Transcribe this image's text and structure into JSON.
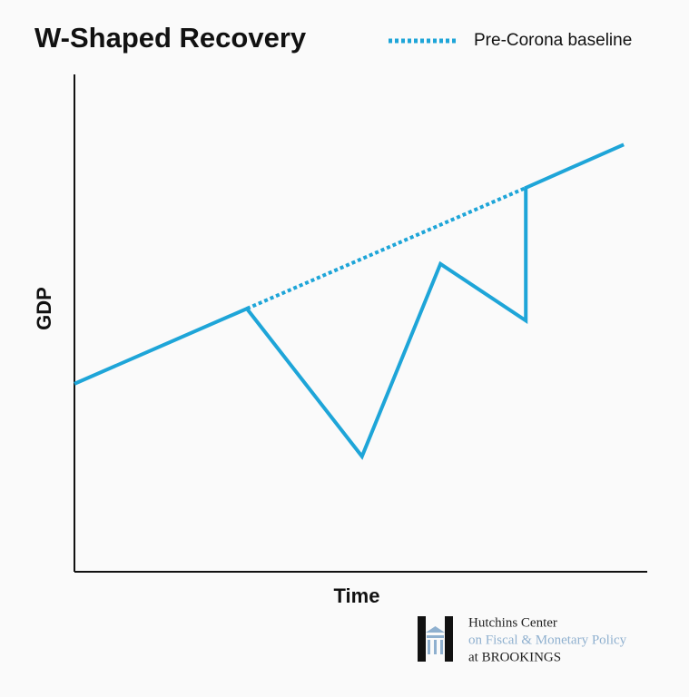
{
  "chart_data": {
    "type": "line",
    "title": "W-Shaped Recovery",
    "x_label": "Time",
    "y_label": "GDP",
    "xlim": [
      0,
      100
    ],
    "ylim": [
      0,
      100
    ],
    "series": [
      {
        "color": "#1ea5d8",
        "x": [
          0,
          30.1,
          50.2,
          63.9,
          78.8,
          78.8,
          95.9
        ],
        "values": [
          37.8,
          52.9,
          23.2,
          61.9,
          50.5,
          77.2,
          85.9
        ]
      },
      {
        "name": "Pre-Corona baseline",
        "color": "#1ea5d8",
        "dashed": true,
        "x": [
          30.1,
          78.8
        ],
        "values": [
          52.9,
          77.2
        ]
      }
    ]
  },
  "logo": {
    "lines": [
      "Hutchins Center",
      "on Fiscal & Monetary Policy",
      "at BROOKINGS"
    ]
  }
}
